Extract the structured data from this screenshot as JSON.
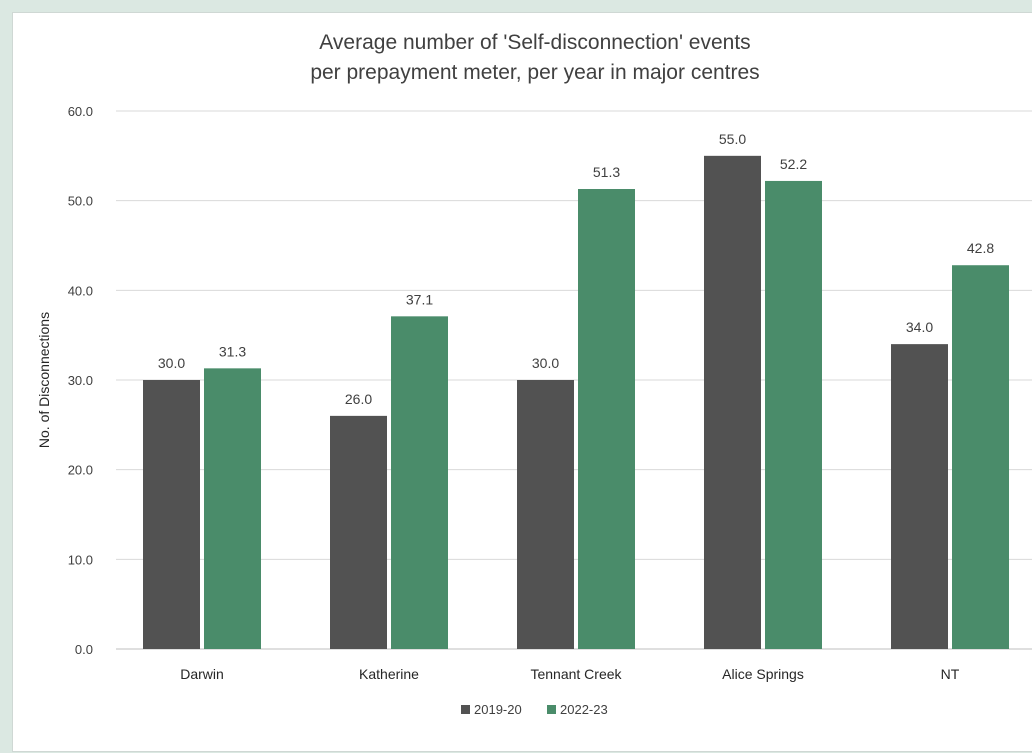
{
  "chart_data": {
    "type": "bar",
    "title_lines": [
      "Average number of 'Self-disconnection' events",
      "per prepayment meter, per year in major centres"
    ],
    "xlabel": "",
    "ylabel": "No. of Disconnections",
    "ylim": [
      0,
      60
    ],
    "y_ticks": [
      "0.0",
      "10.0",
      "20.0",
      "30.0",
      "40.0",
      "50.0",
      "60.0"
    ],
    "categories": [
      "Darwin",
      "Katherine",
      "Tennant Creek",
      "Alice Springs",
      "NT"
    ],
    "series": [
      {
        "name": "2019-20",
        "color": "#525252",
        "values": [
          30.0,
          26.0,
          30.0,
          55.0,
          34.0
        ],
        "labels": [
          "30.0",
          "26.0",
          "30.0",
          "55.0",
          "34.0"
        ]
      },
      {
        "name": "2022-23",
        "color": "#4a8c6a",
        "values": [
          31.3,
          37.1,
          51.3,
          52.2,
          42.8
        ],
        "labels": [
          "31.3",
          "37.1",
          "51.3",
          "52.2",
          "42.8"
        ]
      }
    ],
    "grid": true,
    "legend_position": "bottom"
  }
}
